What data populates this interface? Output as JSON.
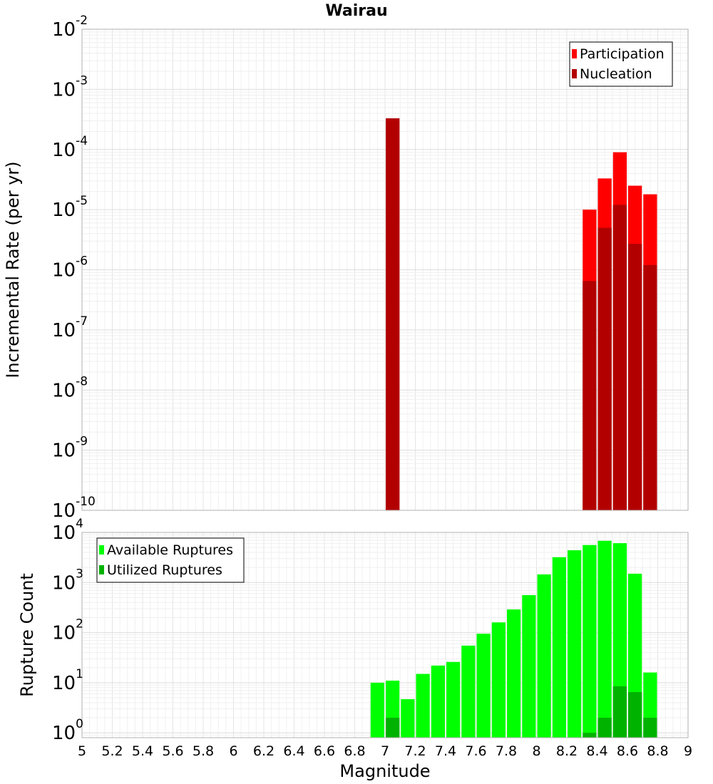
{
  "title": "Wairau",
  "chart_data": [
    {
      "type": "bar",
      "panel": "top",
      "ylabel": "Incremental Rate (per yr)",
      "yscale": "log",
      "ylim": [
        1e-10,
        0.01
      ],
      "xlim": [
        5,
        9
      ],
      "grid": true,
      "legend_position": "top-right",
      "y_ticks": [
        {
          "base": "10",
          "exp": "-10"
        },
        {
          "base": "10",
          "exp": "-9"
        },
        {
          "base": "10",
          "exp": "-8"
        },
        {
          "base": "10",
          "exp": "-7"
        },
        {
          "base": "10",
          "exp": "-6"
        },
        {
          "base": "10",
          "exp": "-5"
        },
        {
          "base": "10",
          "exp": "-4"
        },
        {
          "base": "10",
          "exp": "-3"
        },
        {
          "base": "10",
          "exp": "-2"
        }
      ],
      "series": [
        {
          "name": "Participation",
          "color": "#ff0000",
          "points": [
            {
              "x": 7.05,
              "y": 0.00033
            },
            {
              "x": 8.35,
              "y": 1e-05
            },
            {
              "x": 8.45,
              "y": 3.3e-05
            },
            {
              "x": 8.55,
              "y": 9e-05
            },
            {
              "x": 8.65,
              "y": 2.5e-05
            },
            {
              "x": 8.75,
              "y": 1.8e-05
            }
          ]
        },
        {
          "name": "Nucleation",
          "color": "#b20000",
          "points": [
            {
              "x": 7.05,
              "y": 0.00033
            },
            {
              "x": 8.35,
              "y": 6.5e-07
            },
            {
              "x": 8.45,
              "y": 5e-06
            },
            {
              "x": 8.55,
              "y": 1.2e-05
            },
            {
              "x": 8.65,
              "y": 2.7e-06
            },
            {
              "x": 8.75,
              "y": 1.2e-06
            }
          ]
        }
      ]
    },
    {
      "type": "bar",
      "panel": "bottom",
      "xlabel": "Magnitude",
      "ylabel": "Rupture Count",
      "yscale": "log",
      "ylim": [
        0.8,
        10000
      ],
      "xlim": [
        5,
        9
      ],
      "grid": true,
      "legend_position": "top-left",
      "x_ticks": [
        "5",
        "5.2",
        "5.4",
        "5.6",
        "5.8",
        "6",
        "6.2",
        "6.4",
        "6.6",
        "6.8",
        "7",
        "7.2",
        "7.4",
        "7.6",
        "7.8",
        "8",
        "8.2",
        "8.4",
        "8.6",
        "8.8",
        "9"
      ],
      "y_ticks": [
        {
          "base": "10",
          "exp": "0"
        },
        {
          "base": "10",
          "exp": "1"
        },
        {
          "base": "10",
          "exp": "2"
        },
        {
          "base": "10",
          "exp": "3"
        },
        {
          "base": "10",
          "exp": "4"
        }
      ],
      "series": [
        {
          "name": "Available Ruptures",
          "color": "#00ff00",
          "points": [
            {
              "x": 6.95,
              "y": 10
            },
            {
              "x": 7.05,
              "y": 11
            },
            {
              "x": 7.15,
              "y": 4.7
            },
            {
              "x": 7.25,
              "y": 15
            },
            {
              "x": 7.35,
              "y": 22
            },
            {
              "x": 7.45,
              "y": 26
            },
            {
              "x": 7.55,
              "y": 55
            },
            {
              "x": 7.65,
              "y": 95
            },
            {
              "x": 7.75,
              "y": 160
            },
            {
              "x": 7.85,
              "y": 290
            },
            {
              "x": 7.95,
              "y": 560
            },
            {
              "x": 8.05,
              "y": 1450
            },
            {
              "x": 8.15,
              "y": 3200
            },
            {
              "x": 8.25,
              "y": 4400
            },
            {
              "x": 8.35,
              "y": 5600
            },
            {
              "x": 8.45,
              "y": 6800
            },
            {
              "x": 8.55,
              "y": 6100
            },
            {
              "x": 8.65,
              "y": 1500
            },
            {
              "x": 8.75,
              "y": 16
            }
          ]
        },
        {
          "name": "Utilized Ruptures",
          "color": "#00b200",
          "points": [
            {
              "x": 7.05,
              "y": 2
            },
            {
              "x": 8.35,
              "y": 1
            },
            {
              "x": 8.45,
              "y": 2
            },
            {
              "x": 8.55,
              "y": 8.5
            },
            {
              "x": 8.65,
              "y": 6.5
            },
            {
              "x": 8.75,
              "y": 2
            }
          ]
        }
      ]
    }
  ]
}
